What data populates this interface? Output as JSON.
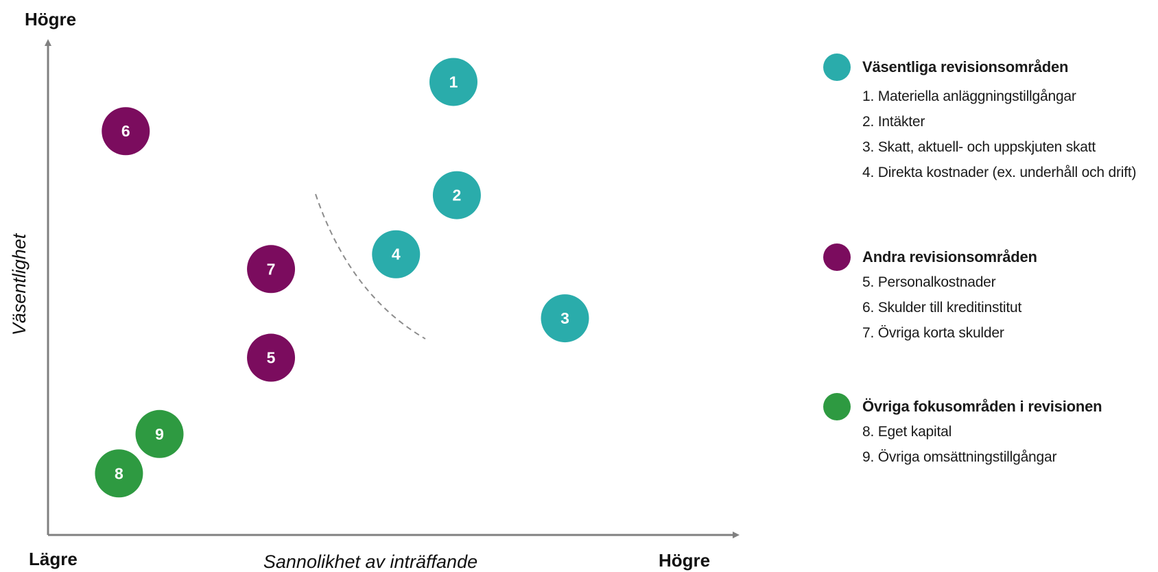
{
  "chart_data": {
    "type": "scatter",
    "title": "",
    "xlabel": "Sannolikhet av inträffande",
    "ylabel": "Väsentlighet",
    "x_low_label": "Lägre",
    "x_high_label": "Högre",
    "y_high_label": "Högre",
    "xlim": [
      0,
      100
    ],
    "ylim": [
      0,
      100
    ],
    "grid": false,
    "legend_position": "right",
    "groups": [
      {
        "name": "Väsentliga revisionsområden",
        "color": "#2aacab",
        "items": [
          "1. Materiella anläggningstillgångar",
          "2. Intäkter",
          "3. Skatt, aktuell- och uppskjuten skatt",
          "4. Direkta kostnader (ex. underhåll och drift)"
        ]
      },
      {
        "name": "Andra revisionsområden",
        "color": "#7b0c5e",
        "items": [
          "5. Personalkostnader",
          "6. Skulder till kreditinstitut",
          "7. Övriga korta skulder"
        ]
      },
      {
        "name": "Övriga fokusområden i revisionen",
        "color": "#2e9a41",
        "items": [
          "8. Eget kapital",
          "9. Övriga omsättningstillgångar"
        ]
      }
    ],
    "points": [
      {
        "label": "1",
        "group": 0,
        "x": 60,
        "y": 92
      },
      {
        "label": "2",
        "group": 0,
        "x": 60.5,
        "y": 69
      },
      {
        "label": "3",
        "group": 0,
        "x": 76.5,
        "y": 44
      },
      {
        "label": "4",
        "group": 0,
        "x": 51.5,
        "y": 57
      },
      {
        "label": "5",
        "group": 1,
        "x": 33,
        "y": 36
      },
      {
        "label": "6",
        "group": 1,
        "x": 11.5,
        "y": 82
      },
      {
        "label": "7",
        "group": 1,
        "x": 33,
        "y": 54
      },
      {
        "label": "8",
        "group": 2,
        "x": 10.5,
        "y": 12.5
      },
      {
        "label": "9",
        "group": 2,
        "x": 16.5,
        "y": 20.5
      }
    ],
    "divider": "dashed curve separating group 1 from the others"
  }
}
